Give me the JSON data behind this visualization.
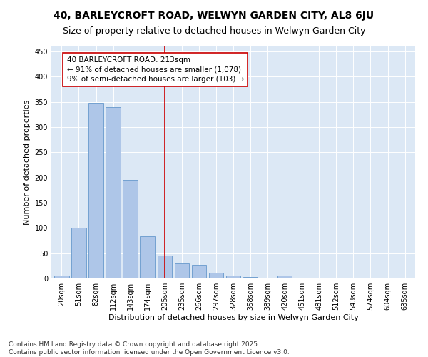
{
  "title": "40, BARLEYCROFT ROAD, WELWYN GARDEN CITY, AL8 6JU",
  "subtitle": "Size of property relative to detached houses in Welwyn Garden City",
  "xlabel": "Distribution of detached houses by size in Welwyn Garden City",
  "ylabel": "Number of detached properties",
  "categories": [
    "20sqm",
    "51sqm",
    "82sqm",
    "112sqm",
    "143sqm",
    "174sqm",
    "205sqm",
    "235sqm",
    "266sqm",
    "297sqm",
    "328sqm",
    "358sqm",
    "389sqm",
    "420sqm",
    "451sqm",
    "481sqm",
    "512sqm",
    "543sqm",
    "574sqm",
    "604sqm",
    "635sqm"
  ],
  "values": [
    5,
    100,
    348,
    340,
    195,
    84,
    46,
    30,
    27,
    11,
    6,
    3,
    0,
    5,
    0,
    0,
    0,
    0,
    0,
    0,
    0
  ],
  "bar_color": "#aec6e8",
  "bar_edge_color": "#6699cc",
  "vline_x": 6,
  "vline_color": "#cc0000",
  "annotation_text": "40 BARLEYCROFT ROAD: 213sqm\n← 91% of detached houses are smaller (1,078)\n9% of semi-detached houses are larger (103) →",
  "annotation_box_facecolor": "#ffffff",
  "annotation_box_edgecolor": "#cc0000",
  "ylim": [
    0,
    460
  ],
  "yticks": [
    0,
    50,
    100,
    150,
    200,
    250,
    300,
    350,
    400,
    450
  ],
  "plot_bg_color": "#dce8f5",
  "fig_bg_color": "#ffffff",
  "footer_line1": "Contains HM Land Registry data © Crown copyright and database right 2025.",
  "footer_line2": "Contains public sector information licensed under the Open Government Licence v3.0.",
  "title_fontsize": 10,
  "subtitle_fontsize": 9,
  "xlabel_fontsize": 8,
  "ylabel_fontsize": 8,
  "tick_fontsize": 7,
  "annotation_fontsize": 7.5,
  "footer_fontsize": 6.5
}
